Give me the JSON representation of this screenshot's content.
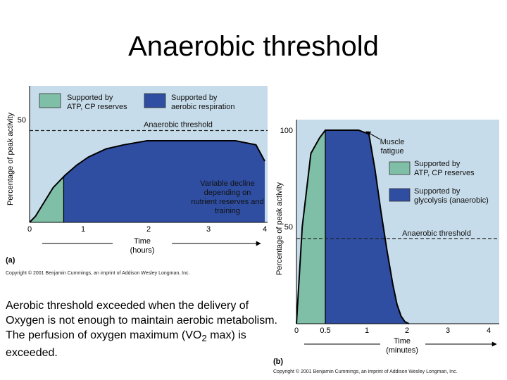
{
  "slide": {
    "title": "Anaerobic threshold",
    "caption_main": "Aerobic threshold exceeded when the delivery of Oxygen is not enough to maintain aerobic metabolism. The perfusion of oxygen maximum (VO",
    "caption_sub": "2",
    "caption_tail": " max) is exceeded."
  },
  "colors": {
    "panel_bg": "#c7dcea",
    "atp_cp": "#7fbfa7",
    "aerobic": "#2f4ea1",
    "glycolysis": "#2f4ea1"
  },
  "chart_data": [
    {
      "type": "area",
      "panel_label": "(a)",
      "ylabel": "Percentage of peak activity",
      "xlabel": "Time",
      "xlabel_unit": "(hours)",
      "xlim": [
        0,
        4
      ],
      "ylim": [
        0,
        70
      ],
      "x_ticks": [
        "0",
        "1",
        "2",
        "3",
        "4"
      ],
      "y_ticks": [
        "50"
      ],
      "y_tick_values": [
        50
      ],
      "threshold": {
        "label": "Anaerobic threshold",
        "value": 45
      },
      "curve": {
        "x": [
          0,
          0.1,
          0.25,
          0.4,
          0.6,
          0.8,
          1.0,
          1.3,
          1.6,
          2.0,
          2.5,
          3.0,
          3.5,
          3.85,
          4.0
        ],
        "y": [
          0,
          3,
          10,
          17,
          23,
          28,
          32,
          36,
          38,
          40,
          40,
          40,
          40,
          38,
          30
        ]
      },
      "atp_cp_until": 0.58,
      "legend": [
        {
          "label": "Supported by ATP, CP reserves",
          "color": "#7fbfa7"
        },
        {
          "label": "Supported by aerobic respiration",
          "color": "#2f4ea1"
        }
      ],
      "annotation": "Variable decline depending on nutrient reserves and training",
      "copyright": "Copyright © 2001 Benjamin Cummings, an imprint of Addison Wesley Longman, Inc."
    },
    {
      "type": "area",
      "panel_label": "(b)",
      "ylabel": "Percentage of peak activity",
      "xlabel": "Time",
      "xlabel_unit": "(minutes)",
      "xlim": [
        0,
        4.2
      ],
      "ylim": [
        0,
        100
      ],
      "x_ticks": [
        "0",
        "0.5",
        "1",
        "2",
        "3",
        "4"
      ],
      "x_tick_values": [
        0,
        0.5,
        1,
        2,
        3,
        4
      ],
      "y_ticks": [
        "100",
        "50"
      ],
      "y_tick_values": [
        100,
        50
      ],
      "threshold": {
        "label": "Anaerobic threshold",
        "value": 44
      },
      "curve": {
        "x": [
          0,
          0.1,
          0.25,
          0.4,
          0.5,
          0.65,
          0.9,
          1.05,
          1.2,
          1.35,
          1.5,
          1.65,
          1.75,
          1.85,
          1.95,
          2.05
        ],
        "y": [
          0,
          50,
          88,
          96,
          100,
          100,
          100,
          98,
          80,
          58,
          38,
          20,
          10,
          4,
          1,
          0
        ]
      },
      "atp_cp_until": 0.5,
      "legend": [
        {
          "label": "Supported by ATP, CP reserves",
          "color": "#7fbfa7"
        },
        {
          "label": "Supported by glycolysis (anaerobic)",
          "color": "#2f4ea1"
        }
      ],
      "annotation": "Muscle fatigue",
      "copyright": "Copyright © 2001 Benjamin Cummings, an imprint of Addison Wesley Longman, Inc."
    }
  ]
}
